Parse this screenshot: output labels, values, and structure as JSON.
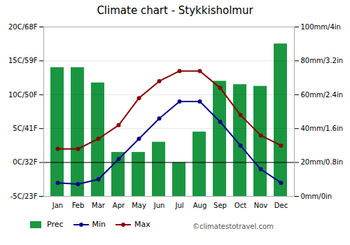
{
  "chart_data": {
    "type": "combo",
    "title": "Climate chart - Stykkisholmur",
    "categories": [
      "Jan",
      "Feb",
      "Mar",
      "Apr",
      "May",
      "Jun",
      "Jul",
      "Aug",
      "Sep",
      "Oct",
      "Nov",
      "Dec"
    ],
    "series": [
      {
        "name": "Prec",
        "type": "bar",
        "axis": "y2",
        "color": "#1a9641",
        "values": [
          76,
          76,
          67,
          26,
          26,
          32,
          20,
          38,
          68,
          66,
          65,
          90
        ]
      },
      {
        "name": "Min",
        "type": "line",
        "marker": "circle",
        "color": "#00008B",
        "values": [
          -3,
          -3.2,
          -2.5,
          0.5,
          3.5,
          6.5,
          9,
          9,
          6,
          2.5,
          -1,
          -3
        ]
      },
      {
        "name": "Max",
        "type": "line",
        "marker": "circle",
        "color": "#8B0000",
        "values": [
          2,
          2,
          3.5,
          5.5,
          9.5,
          12,
          13.5,
          13.5,
          11,
          7,
          4,
          2.5
        ]
      }
    ],
    "ylim": [
      -5,
      20
    ],
    "yticks": [
      {
        "value": -5,
        "label": "-5C/23F"
      },
      {
        "value": 0,
        "label": "0C/32F"
      },
      {
        "value": 5,
        "label": "5C/41F"
      },
      {
        "value": 10,
        "label": "10C/50F"
      },
      {
        "value": 15,
        "label": "15C/59F"
      },
      {
        "value": 20,
        "label": "20C/68F"
      }
    ],
    "y2lim": [
      0,
      100
    ],
    "y2ticks": [
      {
        "value": 0,
        "label": "0mm/0in"
      },
      {
        "value": 20,
        "label": "20mm/0.8in"
      },
      {
        "value": 40,
        "label": "40mm/1.6in"
      },
      {
        "value": 60,
        "label": "60mm/2.4in"
      },
      {
        "value": 80,
        "label": "80mm/3.2in"
      },
      {
        "value": 100,
        "label": "100mm/4in"
      }
    ],
    "hlines": [
      0
    ],
    "grid": true,
    "legend": "bottom",
    "annotations": [
      "©climatestotravel.com"
    ]
  }
}
